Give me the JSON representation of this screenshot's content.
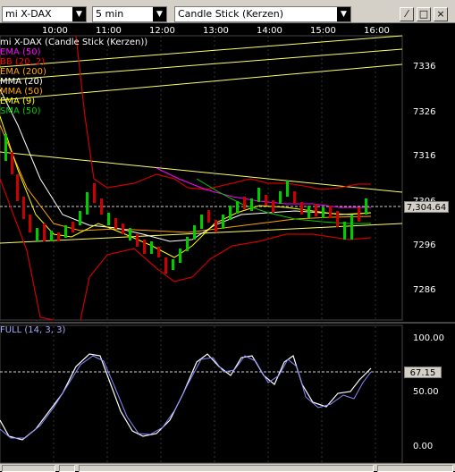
{
  "toolbar": {
    "instrument": "mi X-DAX",
    "interval": "5 min",
    "chart_type": "Candle Stick (Kerzen)",
    "buttons": [
      "⁄",
      "□",
      "×"
    ]
  },
  "chart": {
    "title": "mi X-DAX (Candle Stick (Kerzen))",
    "indicators": [
      {
        "label": "EMA (50)",
        "color": "#ff00ff"
      },
      {
        "label": "BB (20, 2)",
        "color": "#ff0000"
      },
      {
        "label": "EMA (200)",
        "color": "#ffa500"
      },
      {
        "label": "MMA (20)",
        "color": "#ffffff"
      },
      {
        "label": "MMA (50)",
        "color": "#ffa500"
      },
      {
        "label": "EMA (9)",
        "color": "#ffff00"
      },
      {
        "label": "SMA (50)",
        "color": "#00cc00"
      }
    ],
    "time_labels": [
      "10:00",
      "11:00",
      "12:00",
      "13:00",
      "14:00",
      "15:00",
      "16:00"
    ],
    "price_labels": [
      "7336",
      "7326",
      "7316",
      "7306",
      "7296",
      "7286"
    ],
    "last_price": "7,304.64"
  },
  "stochastic": {
    "label": "FULL (14, 3, 3)",
    "levels": [
      "100.00",
      "50.00",
      "0.00"
    ],
    "last_value": "67.15"
  },
  "chart_data": {
    "type": "candlestick",
    "xlabel": "",
    "ylabel": "",
    "ylim": [
      7282,
      7341
    ],
    "x": [
      "09:30",
      "10:00",
      "10:30",
      "11:00",
      "11:30",
      "12:00",
      "12:30",
      "13:00",
      "13:30",
      "14:00",
      "14:30",
      "15:00",
      "15:30",
      "16:00"
    ],
    "close": [
      7318,
      7298,
      7300,
      7305,
      7298,
      7294,
      7296,
      7300,
      7302,
      7304,
      7306,
      7303,
      7298,
      7304.64
    ],
    "stochastic": {
      "x_range": "09:30-16:05",
      "last_value": 67.15
    }
  }
}
